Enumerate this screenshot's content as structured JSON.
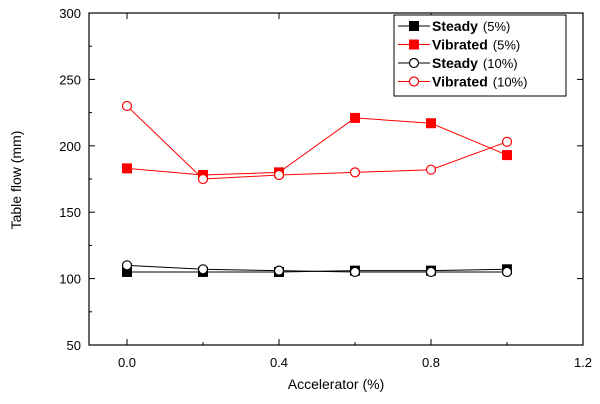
{
  "chart_data": {
    "type": "line",
    "title": "",
    "xlabel": "Accelerator (%)",
    "ylabel": "Table flow (mm)",
    "xlim": [
      -0.1,
      1.2
    ],
    "ylim": [
      50,
      300
    ],
    "xticks": [
      "0.0",
      "0.4",
      "0.8",
      "1.2"
    ],
    "xtick_values": [
      0.0,
      0.4,
      0.8,
      1.2
    ],
    "yticks": [
      "50",
      "100",
      "150",
      "200",
      "250",
      "300"
    ],
    "ytick_values": [
      50,
      100,
      150,
      200,
      250,
      300
    ],
    "grid": false,
    "legend_position": "top-right",
    "x": [
      0.0,
      0.2,
      0.4,
      0.6,
      0.8,
      1.0
    ],
    "series": [
      {
        "name": "Steady",
        "pct": "(5%)",
        "color": "#000000",
        "marker": "square-filled",
        "values": [
          105,
          105,
          105,
          106,
          106,
          107
        ]
      },
      {
        "name": "Vibrated",
        "pct": "(5%)",
        "color": "#ff0000",
        "marker": "square-filled",
        "values": [
          183,
          178,
          180,
          221,
          217,
          193
        ]
      },
      {
        "name": "Steady",
        "pct": "(10%)",
        "color": "#000000",
        "marker": "circle-open",
        "values": [
          110,
          107,
          106,
          105,
          105,
          105
        ]
      },
      {
        "name": "Vibrated",
        "pct": "(10%)",
        "color": "#ff0000",
        "marker": "circle-open",
        "values": [
          230,
          175,
          178,
          180,
          182,
          203
        ]
      }
    ]
  }
}
